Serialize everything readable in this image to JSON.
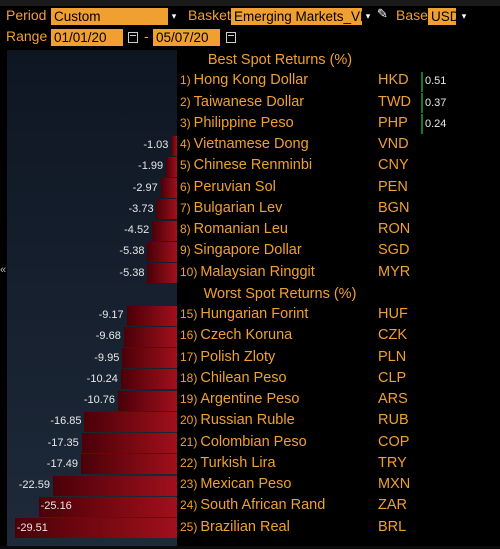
{
  "controls": {
    "period_label": "Period",
    "period_value": "Custom",
    "basket_label": "Basket",
    "basket_value": "Emerging Markets_VN",
    "base_label": "Base",
    "base_value": "USD",
    "range_label": "Range",
    "range_start": "01/01/20",
    "range_sep": "-",
    "range_end": "05/07/20"
  },
  "chart_data": {
    "type": "bar",
    "orientation": "horizontal",
    "sections": [
      {
        "title": "Best Spot Returns (%)",
        "rows": [
          {
            "rank": "1)",
            "name": "Hong Kong Dollar",
            "code": "HKD",
            "value": 0.51
          },
          {
            "rank": "2)",
            "name": "Taiwanese Dollar",
            "code": "TWD",
            "value": 0.37
          },
          {
            "rank": "3)",
            "name": "Philippine Peso",
            "code": "PHP",
            "value": 0.24
          },
          {
            "rank": "4)",
            "name": "Vietnamese Dong",
            "code": "VND",
            "value": -1.03
          },
          {
            "rank": "5)",
            "name": "Chinese Renminbi",
            "code": "CNY",
            "value": -1.99
          },
          {
            "rank": "6)",
            "name": "Peruvian Sol",
            "code": "PEN",
            "value": -2.97
          },
          {
            "rank": "7)",
            "name": "Bulgarian Lev",
            "code": "BGN",
            "value": -3.73
          },
          {
            "rank": "8)",
            "name": "Romanian Leu",
            "code": "RON",
            "value": -4.52
          },
          {
            "rank": "9)",
            "name": "Singapore Dollar",
            "code": "SGD",
            "value": -5.38
          },
          {
            "rank": "10)",
            "name": "Malaysian Ringgit",
            "code": "MYR",
            "value": -5.38
          }
        ]
      },
      {
        "title": "Worst Spot Returns (%)",
        "rows": [
          {
            "rank": "15)",
            "name": "Hungarian Forint",
            "code": "HUF",
            "value": -9.17
          },
          {
            "rank": "16)",
            "name": "Czech Koruna",
            "code": "CZK",
            "value": -9.68
          },
          {
            "rank": "17)",
            "name": "Polish Zloty",
            "code": "PLN",
            "value": -9.95
          },
          {
            "rank": "18)",
            "name": "Chilean Peso",
            "code": "CLP",
            "value": -10.24
          },
          {
            "rank": "19)",
            "name": "Argentine Peso",
            "code": "ARS",
            "value": -10.76
          },
          {
            "rank": "20)",
            "name": "Russian Ruble",
            "code": "RUB",
            "value": -16.85
          },
          {
            "rank": "21)",
            "name": "Colombian Peso",
            "code": "COP",
            "value": -17.35
          },
          {
            "rank": "22)",
            "name": "Turkish Lira",
            "code": "TRY",
            "value": -17.49
          },
          {
            "rank": "23)",
            "name": "Mexican Peso",
            "code": "MXN",
            "value": -22.59
          },
          {
            "rank": "24)",
            "name": "South African Rand",
            "code": "ZAR",
            "value": -25.16
          },
          {
            "rank": "25)",
            "name": "Brazilian Real",
            "code": "BRL",
            "value": -29.51
          }
        ]
      }
    ],
    "xlim": [
      -30,
      1
    ],
    "colors": {
      "negative": "#a0101c",
      "positive": "#1f8a3a"
    }
  }
}
